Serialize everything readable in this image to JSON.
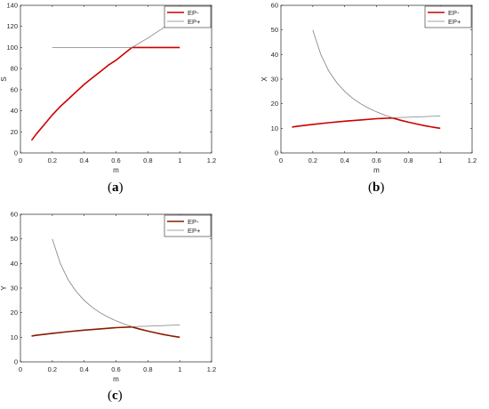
{
  "panels": [
    {
      "caption_open": "(",
      "caption_letter": "a",
      "caption_close": ")",
      "chart_data": {
        "type": "line",
        "xlabel": "m",
        "ylabel": "S",
        "xlim": [
          0,
          1.2
        ],
        "ylim": [
          0,
          140
        ],
        "xticks": [
          0,
          0.2,
          0.4,
          0.6,
          0.8,
          1,
          1.2
        ],
        "xtick_labels": [
          "0",
          "0.2",
          "0.4",
          "0.6",
          "0.8",
          "1",
          "1.2"
        ],
        "yticks": [
          0,
          20,
          40,
          60,
          80,
          100,
          120,
          140
        ],
        "ytick_labels": [
          "0",
          "20",
          "40",
          "60",
          "80",
          "100",
          "120",
          "140"
        ],
        "legend_position": "top-right",
        "series": [
          {
            "name": "EP-",
            "color": "#cc0000",
            "x": [
              0.07,
              0.1,
              0.15,
              0.2,
              0.25,
              0.3,
              0.35,
              0.4,
              0.45,
              0.5,
              0.55,
              0.6,
              0.65,
              0.7,
              0.75,
              0.8,
              0.85,
              0.9,
              0.95,
              1.0
            ],
            "y": [
              12,
              18,
              27,
              36,
              44,
              51,
              58,
              65,
              71,
              77,
              83,
              88,
              94,
              100,
              100,
              100,
              100,
              100,
              100,
              100
            ]
          },
          {
            "name": "EP+",
            "color": "#808080",
            "x": [
              0.2,
              0.3,
              0.4,
              0.5,
              0.6,
              0.65,
              0.7,
              0.8,
              0.9,
              1.0
            ],
            "y": [
              100,
              100,
              100,
              100,
              100,
              100,
              100,
              109,
              119,
              129
            ]
          }
        ]
      }
    },
    {
      "caption_open": "(",
      "caption_letter": "b",
      "caption_close": ")",
      "chart_data": {
        "type": "line",
        "xlabel": "m",
        "ylabel": "X",
        "xlim": [
          0,
          1.2
        ],
        "ylim": [
          0,
          60
        ],
        "xticks": [
          0,
          0.2,
          0.4,
          0.6,
          0.8,
          1,
          1.2
        ],
        "xtick_labels": [
          "0",
          "0.2",
          "0.4",
          "0.6",
          "0.8",
          "1",
          "1.2"
        ],
        "yticks": [
          0,
          10,
          20,
          30,
          40,
          50,
          60
        ],
        "ytick_labels": [
          "0",
          "10",
          "20",
          "30",
          "40",
          "50",
          "60"
        ],
        "legend_position": "top-right",
        "series": [
          {
            "name": "EP-",
            "color": "#cc0000",
            "x": [
              0.07,
              0.1,
              0.2,
              0.3,
              0.4,
              0.5,
              0.6,
              0.7,
              0.75,
              0.8,
              0.85,
              0.9,
              0.95,
              1.0
            ],
            "y": [
              10.5,
              10.8,
              11.6,
              12.3,
              12.9,
              13.4,
              13.9,
              14.2,
              13.3,
              12.5,
              11.8,
              11.1,
              10.5,
              10.0
            ]
          },
          {
            "name": "EP+",
            "color": "#808080",
            "x": [
              0.2,
              0.25,
              0.3,
              0.35,
              0.4,
              0.45,
              0.5,
              0.55,
              0.6,
              0.65,
              0.7,
              0.8,
              0.9,
              1.0
            ],
            "y": [
              50,
              40,
              33.3,
              28.6,
              25,
              22.2,
              20,
              18.2,
              16.7,
              15.4,
              14.3,
              14.5,
              14.8,
              15
            ]
          }
        ]
      }
    },
    {
      "caption_open": "(",
      "caption_letter": "c",
      "caption_close": ")",
      "chart_data": {
        "type": "line",
        "xlabel": "m",
        "ylabel": "Y",
        "xlim": [
          0,
          1.2
        ],
        "ylim": [
          0,
          60
        ],
        "xticks": [
          0,
          0.2,
          0.4,
          0.6,
          0.8,
          1,
          1.2
        ],
        "xtick_labels": [
          "0",
          "0.2",
          "0.4",
          "0.6",
          "0.8",
          "1",
          "1.2"
        ],
        "yticks": [
          0,
          10,
          20,
          30,
          40,
          50,
          60
        ],
        "ytick_labels": [
          "0",
          "10",
          "20",
          "30",
          "40",
          "50",
          "60"
        ],
        "legend_position": "top-right",
        "series": [
          {
            "name": "EP-",
            "color": "#8b1a00",
            "x": [
              0.07,
              0.1,
              0.2,
              0.3,
              0.4,
              0.5,
              0.6,
              0.7,
              0.75,
              0.8,
              0.85,
              0.9,
              0.95,
              1.0
            ],
            "y": [
              10.5,
              10.8,
              11.6,
              12.3,
              12.9,
              13.4,
              13.9,
              14.2,
              13.3,
              12.5,
              11.8,
              11.1,
              10.5,
              10.0
            ]
          },
          {
            "name": "EP+",
            "color": "#808080",
            "x": [
              0.2,
              0.25,
              0.3,
              0.35,
              0.4,
              0.45,
              0.5,
              0.55,
              0.6,
              0.65,
              0.7,
              0.8,
              0.9,
              1.0
            ],
            "y": [
              50,
              40,
              33.3,
              28.6,
              25,
              22.2,
              20,
              18.2,
              16.7,
              15.4,
              14.3,
              14.5,
              14.8,
              15
            ]
          }
        ]
      }
    }
  ]
}
